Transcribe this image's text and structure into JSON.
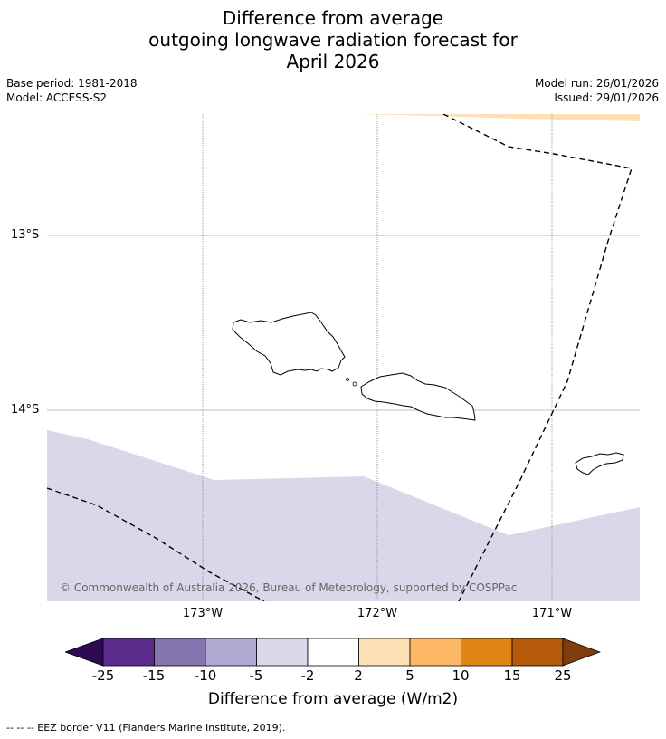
{
  "title": {
    "line1": "Difference from average",
    "line2": "outgoing longwave radiation forecast for",
    "line3": "April 2026"
  },
  "meta": {
    "base_period": "Base period: 1981-2018",
    "model": "Model: ACCESS-S2",
    "model_run": "Model run: 26/01/2026",
    "issued": "Issued: 29/01/2026"
  },
  "map": {
    "lat_labels": [
      "13°S",
      "14°S"
    ],
    "lon_labels": [
      "173°W",
      "172°W",
      "171°W"
    ],
    "credit": "© Commonwealth of Australia 2026, Bureau of Meteorology, supported by COSPPac",
    "colors": {
      "land_outline": "#000000",
      "band_light_purple": "#d8d8ea",
      "band_light_orange": "#fde0b6",
      "eez_line": "#000000",
      "grid": "#aaaaaa"
    }
  },
  "colorbar": {
    "ticks": [
      "-25",
      "-15",
      "-10",
      "-5",
      "-2",
      "2",
      "5",
      "10",
      "15",
      "25"
    ],
    "colors": [
      "#2d0a53",
      "#5b2b8c",
      "#8475b0",
      "#b1a9d2",
      "#d8d8ea",
      "#ffffff",
      "#fde0b6",
      "#fcb865",
      "#e08416",
      "#b55a08",
      "#803c0c"
    ],
    "label": "Difference from average (W/m2)"
  },
  "legend": "--  --  -- EEZ border V11 (Flanders Marine Institute, 2019)."
}
